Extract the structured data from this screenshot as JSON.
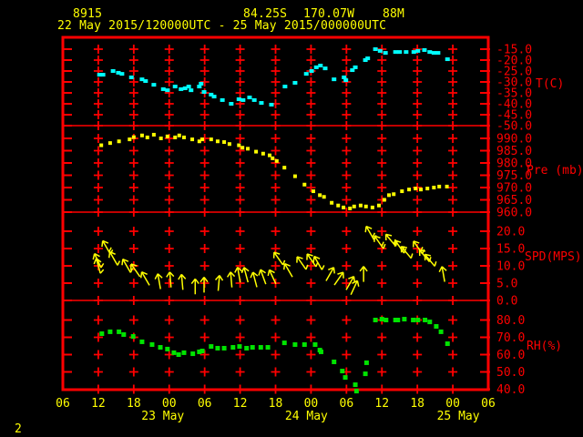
{
  "header": {
    "station_id": "8915",
    "latitude": "84.25S",
    "longitude": "170.07W",
    "elevation": "88M",
    "time_range": "22 May 2015/120000UTC - 25 May 2015/000000UTC"
  },
  "page_number": "2",
  "colors": {
    "background": "#000000",
    "axis": "#FF0000",
    "title_text": "#FFFF00",
    "temperature_series": "#00FFFF",
    "pressure_series": "#FFFF00",
    "wind_series": "#FFFF00",
    "humidity_series": "#00E400"
  },
  "x_axis": {
    "start": "22 May 2015 06UTC",
    "hours_span": 72,
    "tick_interval_hours": 6,
    "hour_labels": [
      "06",
      "12",
      "18",
      "00",
      "06",
      "12",
      "18",
      "00",
      "06",
      "12",
      "18",
      "00",
      "06"
    ],
    "day_labels": [
      {
        "text": "23 May",
        "hour": 18
      },
      {
        "text": "24 May",
        "hour": 42
      },
      {
        "text": "25 May",
        "hour": 66
      }
    ]
  },
  "chart_data": [
    {
      "type": "scatter",
      "name": "temperature",
      "ylabel": "T(C)",
      "units": "deg C",
      "yticks": [
        -15.0,
        -20.0,
        -25.0,
        -30.0,
        -35.0,
        -40.0,
        -45.0,
        -50.0
      ],
      "ylim": [
        -52.5,
        -12.5
      ],
      "x_unit": "hours since 22 May 2015 06UTC",
      "points": [
        [
          6.2,
          -26.7
        ],
        [
          6.8,
          -26.7
        ],
        [
          8.5,
          -25.0
        ],
        [
          9.4,
          -25.8
        ],
        [
          10.0,
          -26.3
        ],
        [
          11.6,
          -27.9
        ],
        [
          13.4,
          -28.8
        ],
        [
          14.0,
          -29.6
        ],
        [
          15.4,
          -31.3
        ],
        [
          17.0,
          -33.3
        ],
        [
          17.7,
          -33.8
        ],
        [
          19.0,
          -32.1
        ],
        [
          20.0,
          -33.3
        ],
        [
          20.7,
          -32.9
        ],
        [
          21.3,
          -32.1
        ],
        [
          21.7,
          -33.8
        ],
        [
          23.1,
          -32.1
        ],
        [
          23.4,
          -30.8
        ],
        [
          23.9,
          -34.6
        ],
        [
          25.1,
          -35.8
        ],
        [
          25.6,
          -36.7
        ],
        [
          27.0,
          -38.3
        ],
        [
          28.5,
          -40.0
        ],
        [
          29.8,
          -37.9
        ],
        [
          30.5,
          -38.3
        ],
        [
          31.6,
          -37.1
        ],
        [
          32.4,
          -38.3
        ],
        [
          33.6,
          -39.6
        ],
        [
          35.3,
          -40.4
        ],
        [
          37.6,
          -32.1
        ],
        [
          39.3,
          -30.4
        ],
        [
          41.2,
          -26.3
        ],
        [
          42.1,
          -25.0
        ],
        [
          42.9,
          -23.3
        ],
        [
          43.6,
          -22.5
        ],
        [
          44.4,
          -23.8
        ],
        [
          45.9,
          -28.8
        ],
        [
          47.6,
          -27.9
        ],
        [
          47.9,
          -29.2
        ],
        [
          49.0,
          -24.6
        ],
        [
          49.5,
          -23.3
        ],
        [
          51.2,
          -20.0
        ],
        [
          51.6,
          -19.2
        ],
        [
          52.9,
          -15.0
        ],
        [
          53.7,
          -15.8
        ],
        [
          54.6,
          -16.7
        ],
        [
          56.3,
          -16.3
        ],
        [
          57.0,
          -16.3
        ],
        [
          58.1,
          -16.3
        ],
        [
          59.4,
          -16.3
        ],
        [
          60.1,
          -15.8
        ],
        [
          61.2,
          -15.4
        ],
        [
          62.1,
          -16.3
        ],
        [
          62.8,
          -16.7
        ],
        [
          63.5,
          -16.7
        ],
        [
          65.1,
          -19.6
        ]
      ]
    },
    {
      "type": "scatter",
      "name": "pressure",
      "ylabel": "Pre (mb)",
      "units": "mb",
      "yticks": [
        990.0,
        985.0,
        980.0,
        975.0,
        970.0,
        965.0,
        960.0
      ],
      "ylim": [
        958.0,
        993.0
      ],
      "x_unit": "hours since 22 May 2015 06UTC",
      "points": [
        [
          6.5,
          987.2
        ],
        [
          8.0,
          988.1
        ],
        [
          9.5,
          988.8
        ],
        [
          11.3,
          989.6
        ],
        [
          12.0,
          990.5
        ],
        [
          13.4,
          991.2
        ],
        [
          14.3,
          990.4
        ],
        [
          15.4,
          991.5
        ],
        [
          16.6,
          990.0
        ],
        [
          17.7,
          990.8
        ],
        [
          19.0,
          990.4
        ],
        [
          19.7,
          991.2
        ],
        [
          20.5,
          990.4
        ],
        [
          21.9,
          989.6
        ],
        [
          23.1,
          988.8
        ],
        [
          23.6,
          989.6
        ],
        [
          25.1,
          989.6
        ],
        [
          26.2,
          988.8
        ],
        [
          27.3,
          988.5
        ],
        [
          28.2,
          987.7
        ],
        [
          29.8,
          987.2
        ],
        [
          30.4,
          986.2
        ],
        [
          31.3,
          985.8
        ],
        [
          32.7,
          984.6
        ],
        [
          33.9,
          983.8
        ],
        [
          35.0,
          983.1
        ],
        [
          35.5,
          981.9
        ],
        [
          36.2,
          980.8
        ],
        [
          37.5,
          978.1
        ],
        [
          39.3,
          974.6
        ],
        [
          40.9,
          971.2
        ],
        [
          42.4,
          968.5
        ],
        [
          43.5,
          966.9
        ],
        [
          44.2,
          966.2
        ],
        [
          45.5,
          963.8
        ],
        [
          46.6,
          962.7
        ],
        [
          47.5,
          961.9
        ],
        [
          48.6,
          961.5
        ],
        [
          49.3,
          962.3
        ],
        [
          50.4,
          962.7
        ],
        [
          51.3,
          962.3
        ],
        [
          52.4,
          961.9
        ],
        [
          53.5,
          962.7
        ],
        [
          54.4,
          965.0
        ],
        [
          55.2,
          966.9
        ],
        [
          56.0,
          967.3
        ],
        [
          57.4,
          968.5
        ],
        [
          58.6,
          969.2
        ],
        [
          59.7,
          969.6
        ],
        [
          60.6,
          969.2
        ],
        [
          61.7,
          969.6
        ],
        [
          62.8,
          970.0
        ],
        [
          63.7,
          970.4
        ],
        [
          65.0,
          970.4
        ]
      ]
    },
    {
      "type": "wind-vector",
      "name": "wind-speed",
      "ylabel": "SPD(MPS)",
      "units": "m/s",
      "yticks": [
        20.0,
        15.0,
        10.0,
        5.0,
        0.0
      ],
      "ylim": [
        -1.5,
        21.5
      ],
      "x_unit": "hours since 22 May 2015 06UTC",
      "vector_note": "each point = [hour, speed_mps, arrow_direction_deg_cw_from_up]",
      "points": [
        [
          5.9,
          11.5,
          -25
        ],
        [
          6.0,
          10.0,
          -15
        ],
        [
          7.4,
          15.3,
          -30
        ],
        [
          8.6,
          12.1,
          -30
        ],
        [
          10.8,
          10.0,
          -30
        ],
        [
          12.3,
          8.7,
          -35
        ],
        [
          14.0,
          6.3,
          -30
        ],
        [
          16.3,
          5.5,
          -10
        ],
        [
          18.2,
          6.0,
          -5
        ],
        [
          20.2,
          5.3,
          -5
        ],
        [
          22.4,
          4.0,
          0
        ],
        [
          23.9,
          4.5,
          0
        ],
        [
          26.4,
          5.0,
          5
        ],
        [
          28.5,
          6.0,
          -5
        ],
        [
          29.8,
          7.4,
          -10
        ],
        [
          31.0,
          7.4,
          -15
        ],
        [
          32.5,
          6.0,
          -15
        ],
        [
          33.9,
          6.8,
          -20
        ],
        [
          35.5,
          6.8,
          -25
        ],
        [
          36.5,
          12.1,
          -35
        ],
        [
          38.2,
          8.7,
          -30
        ],
        [
          40.4,
          10.8,
          -35
        ],
        [
          42.1,
          11.6,
          -35
        ],
        [
          43.2,
          10.8,
          -30
        ],
        [
          45.2,
          7.6,
          30
        ],
        [
          46.7,
          6.3,
          35
        ],
        [
          48.6,
          5.0,
          30
        ],
        [
          49.3,
          3.7,
          25
        ],
        [
          50.9,
          7.6,
          0
        ],
        [
          52.0,
          19.5,
          -30
        ],
        [
          53.5,
          16.8,
          -35
        ],
        [
          55.5,
          17.4,
          -40
        ],
        [
          57.0,
          15.5,
          -35
        ],
        [
          58.1,
          13.9,
          -40
        ],
        [
          60.1,
          15.3,
          -35
        ],
        [
          61.2,
          12.9,
          -40
        ],
        [
          62.1,
          11.6,
          -40
        ],
        [
          64.4,
          7.6,
          -10
        ]
      ]
    },
    {
      "type": "scatter",
      "name": "relative-humidity",
      "ylabel": "RH(%)",
      "units": "%",
      "yticks": [
        80.0,
        70.0,
        60.0,
        50.0,
        40.0
      ],
      "ylim": [
        38.0,
        85.0
      ],
      "x_unit": "hours since 22 May 2015 06UTC",
      "points": [
        [
          6.6,
          72.1
        ],
        [
          8.0,
          73.2
        ],
        [
          9.5,
          73.2
        ],
        [
          10.3,
          71.6
        ],
        [
          11.9,
          70.5
        ],
        [
          13.4,
          67.4
        ],
        [
          15.1,
          65.8
        ],
        [
          16.5,
          64.2
        ],
        [
          17.7,
          63.2
        ],
        [
          18.8,
          61.1
        ],
        [
          19.6,
          60.0
        ],
        [
          20.5,
          61.1
        ],
        [
          22.0,
          60.5
        ],
        [
          23.1,
          61.6
        ],
        [
          23.6,
          62.1
        ],
        [
          25.1,
          64.7
        ],
        [
          26.2,
          63.7
        ],
        [
          27.3,
          63.7
        ],
        [
          28.8,
          64.2
        ],
        [
          29.9,
          64.7
        ],
        [
          31.1,
          63.7
        ],
        [
          32.1,
          64.2
        ],
        [
          33.5,
          64.2
        ],
        [
          34.7,
          64.2
        ],
        [
          37.5,
          66.8
        ],
        [
          39.3,
          65.8
        ],
        [
          40.9,
          65.8
        ],
        [
          42.7,
          65.8
        ],
        [
          43.5,
          62.6
        ],
        [
          43.7,
          61.6
        ],
        [
          45.9,
          55.8
        ],
        [
          47.3,
          50.5
        ],
        [
          47.8,
          46.8
        ],
        [
          49.5,
          42.6
        ],
        [
          49.7,
          38.9
        ],
        [
          51.2,
          48.9
        ],
        [
          51.4,
          55.3
        ],
        [
          52.9,
          80.0
        ],
        [
          54.0,
          80.5
        ],
        [
          54.7,
          80.0
        ],
        [
          56.3,
          80.0
        ],
        [
          56.7,
          80.0
        ],
        [
          57.8,
          80.5
        ],
        [
          59.3,
          80.0
        ],
        [
          60.1,
          80.0
        ],
        [
          61.3,
          80.0
        ],
        [
          62.1,
          78.9
        ],
        [
          63.2,
          76.3
        ],
        [
          64.0,
          73.2
        ],
        [
          65.1,
          66.3
        ]
      ]
    }
  ]
}
